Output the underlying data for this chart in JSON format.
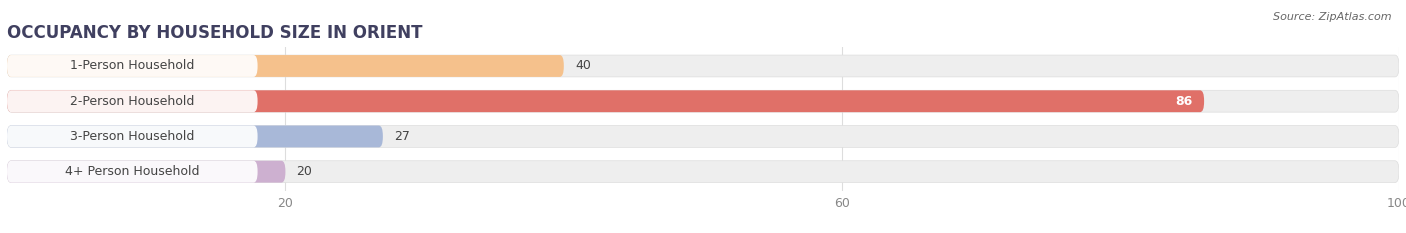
{
  "title": "OCCUPANCY BY HOUSEHOLD SIZE IN ORIENT",
  "source": "Source: ZipAtlas.com",
  "categories": [
    "1-Person Household",
    "2-Person Household",
    "3-Person Household",
    "4+ Person Household"
  ],
  "values": [
    40,
    86,
    27,
    20
  ],
  "bar_colors": [
    "#f5c18c",
    "#e07068",
    "#a8b8d8",
    "#cdb0d0"
  ],
  "xlim_max": 104,
  "data_max": 100,
  "xticks": [
    20,
    60,
    100
  ],
  "bar_height": 0.62,
  "background_color": "#ffffff",
  "bar_bg_color": "#eeeeee",
  "label_bg_color": "#ffffff",
  "title_fontsize": 12,
  "label_fontsize": 9,
  "value_fontsize": 9,
  "source_fontsize": 8,
  "title_color": "#404060",
  "label_color": "#444444",
  "value_color_dark": "#444444",
  "value_color_light": "#ffffff",
  "grid_color": "#dddddd",
  "tick_color": "#888888"
}
